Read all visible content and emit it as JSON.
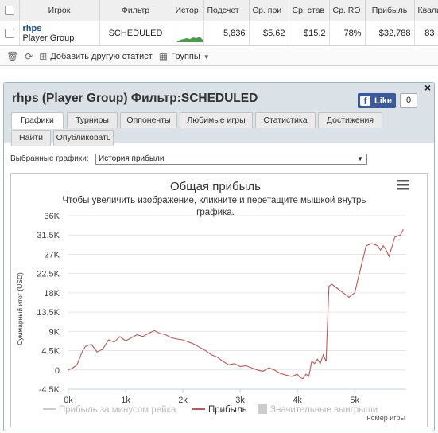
{
  "table": {
    "headers": [
      "Игрок",
      "Фильтр",
      "Истор",
      "Подсчет",
      "Ср. при",
      "Ср. став",
      "Ср. RO",
      "Прибыль",
      "Квали"
    ],
    "row": {
      "player_name": "rhps",
      "player_group": "Player Group",
      "filter": "SCHEDULED",
      "count": "5,836",
      "avg_profit": "$5.62",
      "avg_stake": "$15.2",
      "avg_roi": "78%",
      "profit": "$32,788",
      "qual": "83"
    }
  },
  "toolbar": {
    "add_stat_label": "Добавить другую статист",
    "groups_label": "Группы"
  },
  "panel": {
    "title": "rhps (Player Group) Фильтр:SCHEDULED",
    "like_label": "Like",
    "like_count": "0",
    "close_label": "×",
    "tabs": [
      "Графики",
      "Турниры",
      "Оппоненты",
      "Любимые игры",
      "Статистика",
      "Достижения",
      "Найти",
      "Опубликовать"
    ],
    "select_label": "Выбранные графики:",
    "select_value": "История прибыли"
  },
  "chart_data": {
    "type": "line",
    "title": "Общая прибыль",
    "subtitle": "Чтобы увеличить изображение, кликните и перетащите мышкой внутрь графика.",
    "xlabel": "номер игры",
    "ylabel": "Суммарный итог (USD)",
    "xlim": [
      0,
      5900
    ],
    "ylim": [
      -4500,
      36000
    ],
    "x_ticks": [
      "0k",
      "1k",
      "2k",
      "3k",
      "4k",
      "5k"
    ],
    "y_ticks": [
      "36K",
      "31.5K",
      "27K",
      "22.5K",
      "18K",
      "13.5K",
      "9K",
      "4.5K",
      "0",
      "-4.5K"
    ],
    "grid": true,
    "legend_position": "bottom",
    "legend": [
      "Прибыль за минусом рейка",
      "Прибыль",
      "Значительные выигрыши"
    ],
    "series": [
      {
        "name": "Прибыль",
        "color": "#b85a5a",
        "x": [
          0,
          80,
          150,
          250,
          300,
          400,
          500,
          600,
          700,
          800,
          900,
          1000,
          1100,
          1200,
          1300,
          1400,
          1500,
          1600,
          1700,
          1800,
          1900,
          2000,
          2100,
          2200,
          2300,
          2400,
          2500,
          2600,
          2700,
          2800,
          2900,
          3000,
          3100,
          3200,
          3300,
          3400,
          3500,
          3600,
          3700,
          3800,
          3900,
          4000,
          4050,
          4100,
          4150,
          4200,
          4250,
          4300,
          4350,
          4400,
          4450,
          4500,
          4550,
          4600,
          4700,
          4800,
          4850,
          4900,
          5000,
          5100,
          5200,
          5300,
          5400,
          5450,
          5500,
          5550,
          5600,
          5700,
          5800,
          5850
        ],
        "y": [
          0,
          500,
          1200,
          4500,
          5500,
          6000,
          4200,
          4800,
          7000,
          6500,
          7800,
          6800,
          7500,
          8200,
          7800,
          8500,
          9200,
          8500,
          8200,
          7500,
          7200,
          7000,
          6500,
          6000,
          5200,
          4500,
          3500,
          3000,
          2000,
          1200,
          1500,
          800,
          1000,
          500,
          0,
          -300,
          500,
          0,
          -800,
          -1200,
          -1500,
          -1000,
          -1800,
          -2000,
          -1000,
          -1500,
          2000,
          1500,
          2500,
          1500,
          3500,
          2000,
          19500,
          20000,
          19000,
          18000,
          17500,
          17000,
          18000,
          23500,
          29000,
          29500,
          29000,
          28000,
          29000,
          28000,
          26500,
          31000,
          31500,
          32800
        ]
      }
    ]
  }
}
